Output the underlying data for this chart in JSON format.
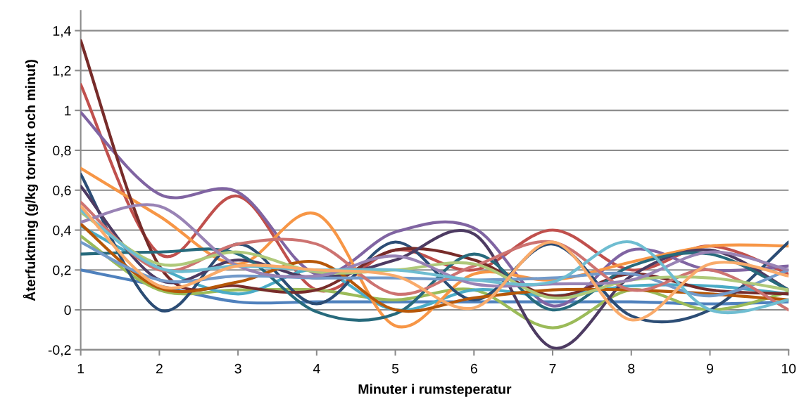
{
  "chart_data": {
    "type": "line",
    "xlabel": "Minuter i rumsteperatur",
    "ylabel": "Återfuktning (g/kg torrvikt och minut)",
    "x": [
      1,
      2,
      3,
      4,
      5,
      6,
      7,
      8,
      9,
      10
    ],
    "xlim": [
      1,
      10
    ],
    "xticks": [
      1,
      2,
      3,
      4,
      5,
      6,
      7,
      8,
      9,
      10
    ],
    "ylim": [
      -0.2,
      1.5
    ],
    "yticks": [
      {
        "value": -0.2,
        "label": "-0,2"
      },
      {
        "value": 0,
        "label": "0"
      },
      {
        "value": 0.2,
        "label": "0,2"
      },
      {
        "value": 0.4,
        "label": "0,4"
      },
      {
        "value": 0.6,
        "label": "0,6"
      },
      {
        "value": 0.8,
        "label": "0,8"
      },
      {
        "value": 1,
        "label": "1"
      },
      {
        "value": 1.2,
        "label": "1,2"
      },
      {
        "value": 1.4,
        "label": "1,4"
      }
    ],
    "grid": "y",
    "marker": "none",
    "line_style": "solid",
    "series": [
      {
        "color": "#4f81bd",
        "values": [
          0.2,
          0.12,
          0.04,
          0.04,
          0.04,
          0.04,
          0.04,
          0.04,
          0.03,
          0.04
        ]
      },
      {
        "color": "#c0504d",
        "values": [
          1.13,
          0.28,
          0.57,
          0.1,
          0.3,
          0.2,
          0.4,
          0.2,
          0.32,
          0.18
        ]
      },
      {
        "color": "#9bbb59",
        "values": [
          0.37,
          0.1,
          0.1,
          0.1,
          0.05,
          0.1,
          -0.09,
          0.1,
          0.0,
          0.09
        ]
      },
      {
        "color": "#8064a2",
        "values": [
          0.99,
          0.58,
          0.59,
          0.18,
          0.39,
          0.41,
          0.02,
          0.3,
          0.2,
          0.22
        ]
      },
      {
        "color": "#4bacc6",
        "values": [
          0.42,
          0.21,
          0.08,
          0.2,
          0.0,
          0.1,
          0.07,
          0.12,
          0.12,
          0.08
        ]
      },
      {
        "color": "#f79646",
        "values": [
          0.71,
          0.47,
          0.23,
          0.48,
          -0.08,
          0.18,
          0.15,
          0.24,
          0.32,
          0.32
        ]
      },
      {
        "color": "#2c4d75",
        "values": [
          0.68,
          0.0,
          0.33,
          0.03,
          0.34,
          0.05,
          0.33,
          -0.03,
          0.0,
          0.34
        ]
      },
      {
        "color": "#772c2a",
        "values": [
          1.35,
          0.22,
          0.12,
          0.1,
          0.3,
          0.25,
          0.07,
          0.18,
          0.1,
          0.08
        ]
      },
      {
        "color": "#4d3b62",
        "values": [
          0.62,
          0.15,
          0.25,
          0.16,
          0.25,
          0.38,
          -0.19,
          0.17,
          0.3,
          0.1
        ]
      },
      {
        "color": "#276a7c",
        "values": [
          0.28,
          0.29,
          0.28,
          -0.01,
          -0.02,
          0.28,
          0.0,
          0.22,
          0.28,
          0.1
        ]
      },
      {
        "color": "#b65708",
        "values": [
          0.43,
          0.11,
          0.14,
          0.24,
          0.0,
          0.06,
          0.1,
          0.1,
          0.08,
          0.05
        ]
      },
      {
        "color": "#729aca",
        "values": [
          0.34,
          0.15,
          0.17,
          0.16,
          0.16,
          0.15,
          0.16,
          0.18,
          0.07,
          0.2
        ]
      },
      {
        "color": "#cd7371",
        "values": [
          0.54,
          0.2,
          0.33,
          0.33,
          0.08,
          0.22,
          0.34,
          0.1,
          0.2,
          0.0
        ]
      },
      {
        "color": "#afc97a",
        "values": [
          0.49,
          0.23,
          0.29,
          0.19,
          0.2,
          0.23,
          0.06,
          0.15,
          0.16,
          0.1
        ]
      },
      {
        "color": "#9983b5",
        "values": [
          0.44,
          0.52,
          0.22,
          0.17,
          0.27,
          0.13,
          0.13,
          0.15,
          0.29,
          0.2
        ]
      },
      {
        "color": "#6fbdd1",
        "values": [
          0.5,
          0.21,
          0.22,
          0.2,
          0.2,
          0.15,
          0.14,
          0.34,
          0.0,
          0.05
        ]
      },
      {
        "color": "#f9ab6b",
        "values": [
          0.52,
          0.12,
          0.22,
          0.2,
          0.17,
          0.01,
          0.34,
          -0.05,
          0.23,
          0.17
        ]
      }
    ]
  }
}
